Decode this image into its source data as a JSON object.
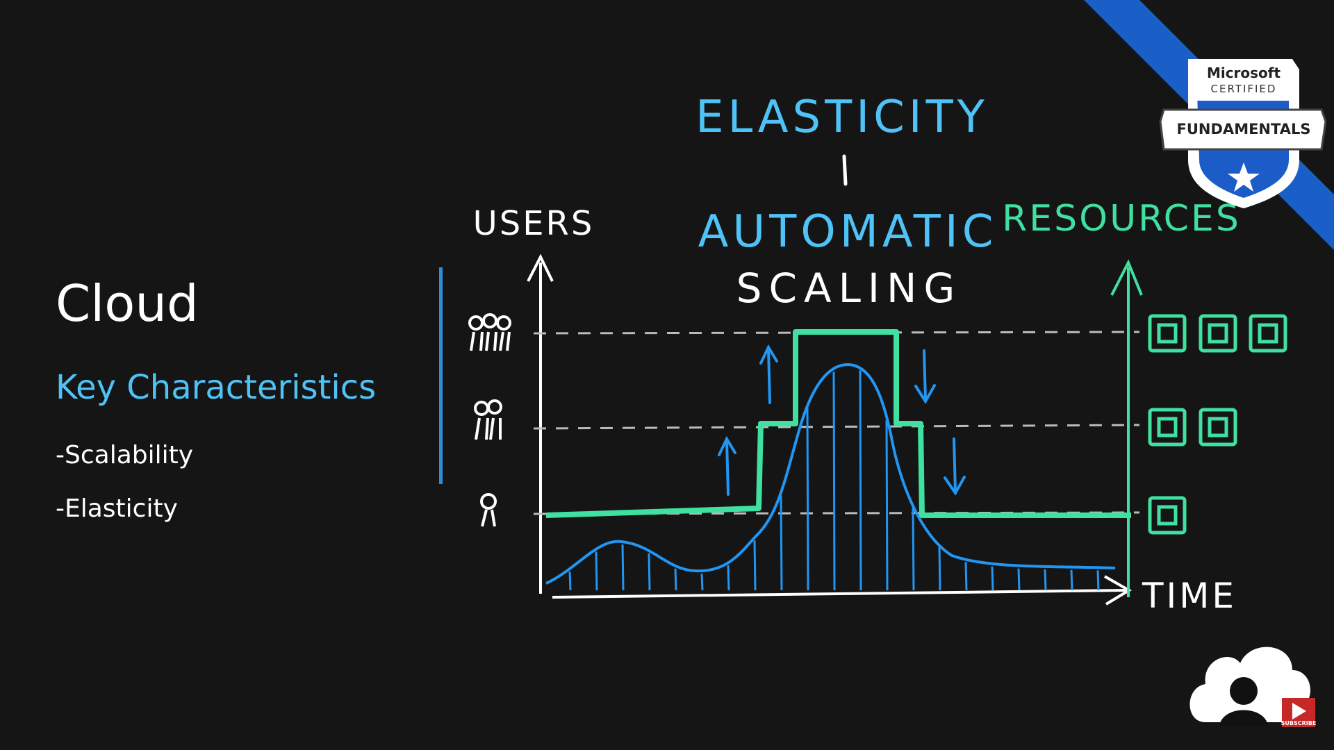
{
  "slide": {
    "title": "Cloud",
    "subtitle": "Key Characteristics",
    "bullets": [
      "-Scalability",
      "-Elasticity"
    ]
  },
  "diagram": {
    "heading_top": "ELASTICITY",
    "heading_bottom_1": "AUTOMATIC",
    "heading_bottom_2": "SCALING",
    "left_axis_label": "USERS",
    "right_axis_label": "RESOURCES",
    "x_axis_label": "TIME",
    "colors": {
      "users_curve": "#2196f3",
      "resources_line": "#3fe0a0",
      "text_blue": "#4fc3f7",
      "white": "#ffffff"
    },
    "resource_levels": [
      1,
      2,
      3
    ],
    "user_levels": [
      1,
      2,
      3
    ]
  },
  "badge": {
    "line1": "Microsoft",
    "line2": "CERTIFIED",
    "line3": "FUNDAMENTALS"
  },
  "subscribe": {
    "label": "SUBSCRIBE"
  }
}
